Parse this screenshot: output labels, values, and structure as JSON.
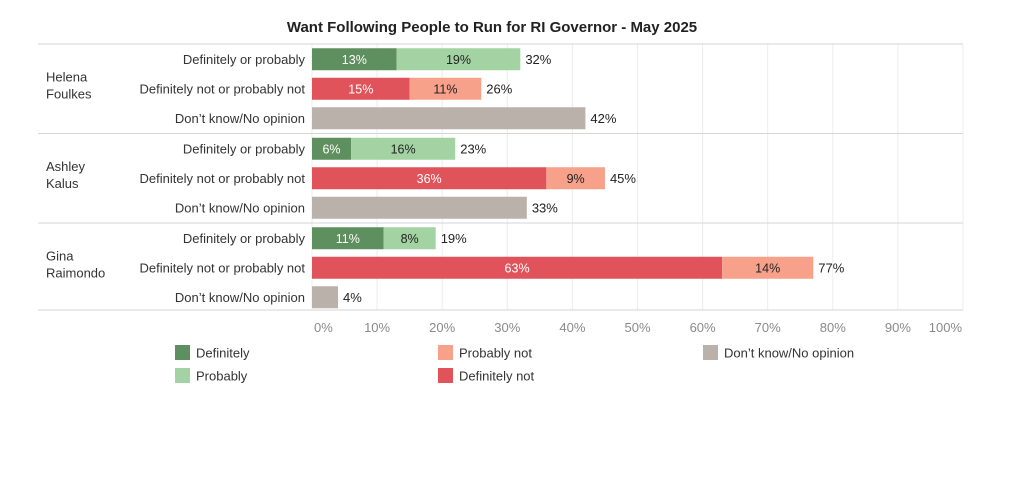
{
  "chart_data": {
    "type": "bar",
    "orientation": "horizontal",
    "stacked": true,
    "title": "Want Following People to Run for RI Governor - May 2025",
    "xlim": [
      0,
      100
    ],
    "x_ticks": [
      "0%",
      "10%",
      "20%",
      "30%",
      "40%",
      "50%",
      "60%",
      "70%",
      "80%",
      "90%",
      "100%"
    ],
    "grid": true,
    "legend_placement": "bottom",
    "colors": {
      "Definitely": "#5e8f5e",
      "Probably": "#a3d3a3",
      "Probably not": "#f7a08a",
      "Definitely not": "#e0535a",
      "Don’t know/No opinion": "#bbb1ab"
    },
    "legend": [
      {
        "name": "Definitely"
      },
      {
        "name": "Probably"
      },
      {
        "name": "Probably not"
      },
      {
        "name": "Definitely not"
      },
      {
        "name": "Don’t know/No opinion"
      }
    ],
    "groups": [
      {
        "label": [
          "Helena",
          "Foulkes"
        ],
        "rows": [
          {
            "category": "Definitely or probably",
            "total_label": "32%",
            "segments": [
              {
                "series": "Definitely",
                "value": 13,
                "label": "13%"
              },
              {
                "series": "Probably",
                "value": 19,
                "label": "19%"
              }
            ]
          },
          {
            "category": "Definitely not or probably not",
            "total_label": "26%",
            "segments": [
              {
                "series": "Definitely not",
                "value": 15,
                "label": "15%"
              },
              {
                "series": "Probably not",
                "value": 11,
                "label": "11%"
              }
            ]
          },
          {
            "category": "Don’t know/No opinion",
            "total_label": "42%",
            "segments": [
              {
                "series": "Don’t know/No opinion",
                "value": 42,
                "label": ""
              }
            ]
          }
        ]
      },
      {
        "label": [
          "Ashley",
          "Kalus"
        ],
        "rows": [
          {
            "category": "Definitely or probably",
            "total_label": "23%",
            "segments": [
              {
                "series": "Definitely",
                "value": 6,
                "label": "6%"
              },
              {
                "series": "Probably",
                "value": 16,
                "label": "16%"
              }
            ]
          },
          {
            "category": "Definitely not or probably not",
            "total_label": "45%",
            "segments": [
              {
                "series": "Definitely not",
                "value": 36,
                "label": "36%"
              },
              {
                "series": "Probably not",
                "value": 9,
                "label": "9%"
              }
            ]
          },
          {
            "category": "Don’t know/No opinion",
            "total_label": "33%",
            "segments": [
              {
                "series": "Don’t know/No opinion",
                "value": 33,
                "label": ""
              }
            ]
          }
        ]
      },
      {
        "label": [
          "Gina",
          "Raimondo"
        ],
        "rows": [
          {
            "category": "Definitely or probably",
            "total_label": "19%",
            "segments": [
              {
                "series": "Definitely",
                "value": 11,
                "label": "11%"
              },
              {
                "series": "Probably",
                "value": 8,
                "label": "8%"
              }
            ]
          },
          {
            "category": "Definitely not or probably not",
            "total_label": "77%",
            "segments": [
              {
                "series": "Definitely not",
                "value": 63,
                "label": "63%"
              },
              {
                "series": "Probably not",
                "value": 14,
                "label": "14%"
              }
            ]
          },
          {
            "category": "Don’t know/No opinion",
            "total_label": "4%",
            "segments": [
              {
                "series": "Don’t know/No opinion",
                "value": 4,
                "label": ""
              }
            ]
          }
        ]
      }
    ]
  }
}
